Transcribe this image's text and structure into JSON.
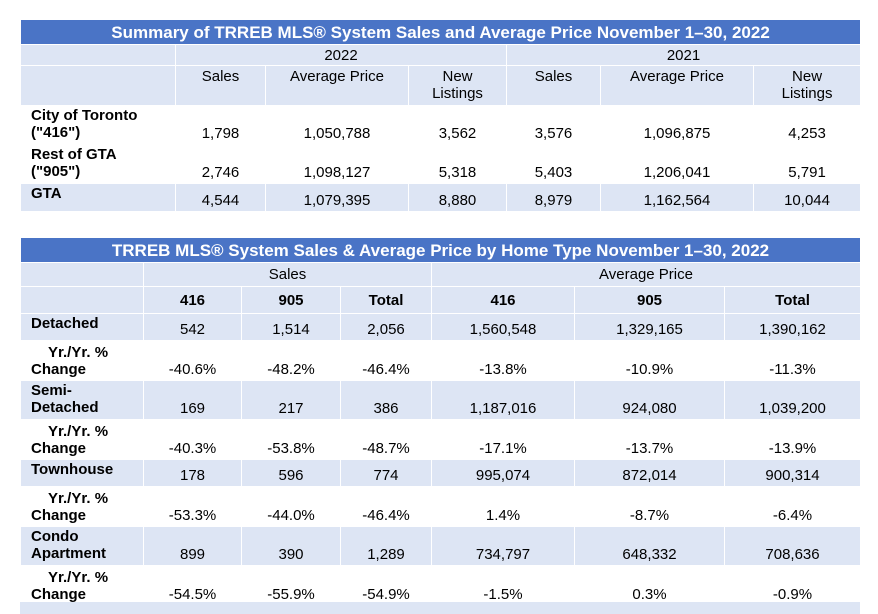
{
  "summary": {
    "title": "Summary of TRREB MLS® System Sales and Average Price November 1–30, 2022",
    "year_a": "2022",
    "year_b": "2021",
    "col_sales": "Sales",
    "col_avg": "Average Price",
    "col_new_l1": "New",
    "col_new_l2": "Listings",
    "rows": [
      {
        "label_l1": "City of Toronto",
        "label_l2": "(\"416\")",
        "sales_a": "1,798",
        "avg_a": "1,050,788",
        "new_a": "3,562",
        "sales_b": "3,576",
        "avg_b": "1,096,875",
        "new_b": "4,253"
      },
      {
        "label_l1": "Rest of GTA",
        "label_l2": "(\"905\")",
        "sales_a": "2,746",
        "avg_a": "1,098,127",
        "new_a": "5,318",
        "sales_b": "5,403",
        "avg_b": "1,206,041",
        "new_b": "5,791"
      },
      {
        "label_l1": "GTA",
        "label_l2": "",
        "sales_a": "4,544",
        "avg_a": "1,079,395",
        "new_a": "8,880",
        "sales_b": "8,979",
        "avg_b": "1,162,564",
        "new_b": "10,044"
      }
    ]
  },
  "home_type": {
    "title": "TRREB MLS® System Sales & Average Price by Home Type November 1–30, 2022",
    "group_sales": "Sales",
    "group_avg": "Average Price",
    "cols": [
      "416",
      "905",
      "Total",
      "416",
      "905",
      "Total"
    ],
    "yoy_l1": "Yr./Yr. %",
    "yoy_l2": "Change",
    "types": [
      {
        "label_l1": "Detached",
        "label_l2": "",
        "values": [
          "542",
          "1,514",
          "2,056",
          "1,560,548",
          "1,329,165",
          "1,390,162"
        ],
        "yoy": [
          "-40.6%",
          "-48.2%",
          "-46.4%",
          "-13.8%",
          "-10.9%",
          "-11.3%"
        ]
      },
      {
        "label_l1": "Semi-",
        "label_l2": "Detached",
        "values": [
          "169",
          "217",
          "386",
          "1,187,016",
          "924,080",
          "1,039,200"
        ],
        "yoy": [
          "-40.3%",
          "-53.8%",
          "-48.7%",
          "-17.1%",
          "-13.7%",
          "-13.9%"
        ]
      },
      {
        "label_l1": "Townhouse",
        "label_l2": "",
        "values": [
          "178",
          "596",
          "774",
          "995,074",
          "872,014",
          "900,314"
        ],
        "yoy": [
          "-53.3%",
          "-44.0%",
          "-46.4%",
          "1.4%",
          "-8.7%",
          "-6.4%"
        ]
      },
      {
        "label_l1": "Condo",
        "label_l2": "Apartment",
        "values": [
          "899",
          "390",
          "1,289",
          "734,797",
          "648,332",
          "708,636"
        ],
        "yoy": [
          "-54.5%",
          "-55.9%",
          "-54.9%",
          "-1.5%",
          "0.3%",
          "-0.9%"
        ]
      }
    ]
  }
}
